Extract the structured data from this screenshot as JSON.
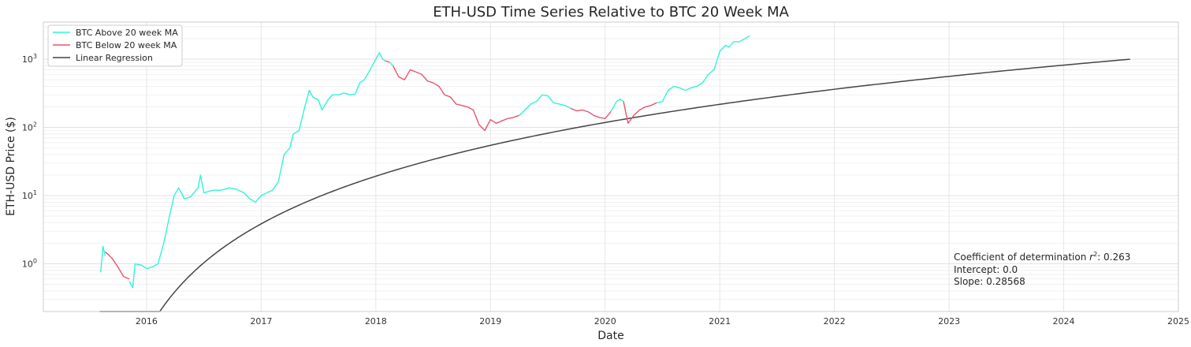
{
  "chart_data": {
    "type": "line",
    "title": "ETH-USD Time Series Relative to BTC 20 Week MA",
    "xlabel": "Date",
    "ylabel": "ETH-USD Price ($)",
    "yscale": "log",
    "xlim": [
      2015.1,
      2025.0
    ],
    "ylim": [
      0.2,
      3500
    ],
    "grid": true,
    "legend_position": "top-left",
    "x_ticks": [
      "2016",
      "2017",
      "2018",
      "2019",
      "2020",
      "2021",
      "2022",
      "2023",
      "2024",
      "2025"
    ],
    "y_ticks": [
      {
        "value": 1,
        "base": "10",
        "exp": "0"
      },
      {
        "value": 10,
        "base": "10",
        "exp": "1"
      },
      {
        "value": 100,
        "base": "10",
        "exp": "2"
      },
      {
        "value": 1000,
        "base": "10",
        "exp": "3"
      }
    ],
    "series": [
      {
        "name": "BTC Above 20 week MA",
        "color": "#2ef5d8",
        "segments": [
          [
            [
              2015.6,
              0.75
            ],
            [
              2015.62,
              1.8
            ],
            [
              2015.64,
              1.3
            ]
          ],
          [
            [
              2015.85,
              0.55
            ],
            [
              2015.88,
              0.45
            ],
            [
              2015.9,
              1.0
            ],
            [
              2015.96,
              0.95
            ],
            [
              2016.0,
              0.85
            ],
            [
              2016.05,
              0.9
            ],
            [
              2016.1,
              1.0
            ],
            [
              2016.15,
              2.0
            ],
            [
              2016.2,
              5.0
            ],
            [
              2016.24,
              10.0
            ],
            [
              2016.28,
              13.0
            ],
            [
              2016.33,
              9.0
            ],
            [
              2016.38,
              9.5
            ],
            [
              2016.45,
              13.0
            ],
            [
              2016.47,
              20.0
            ],
            [
              2016.5,
              11.0
            ],
            [
              2016.58,
              12.0
            ],
            [
              2016.65,
              12.0
            ],
            [
              2016.72,
              13.0
            ],
            [
              2016.78,
              12.5
            ],
            [
              2016.85,
              11.0
            ],
            [
              2016.9,
              9.0
            ],
            [
              2016.95,
              8.0
            ],
            [
              2017.0,
              10.0
            ],
            [
              2017.05,
              11.0
            ],
            [
              2017.1,
              12.0
            ],
            [
              2017.15,
              16.0
            ],
            [
              2017.2,
              40.0
            ],
            [
              2017.25,
              50.0
            ],
            [
              2017.28,
              80.0
            ],
            [
              2017.33,
              90.0
            ],
            [
              2017.38,
              200.0
            ],
            [
              2017.42,
              350.0
            ],
            [
              2017.45,
              280.0
            ],
            [
              2017.5,
              250.0
            ],
            [
              2017.53,
              180.0
            ],
            [
              2017.58,
              250.0
            ],
            [
              2017.62,
              300.0
            ],
            [
              2017.68,
              300.0
            ],
            [
              2017.72,
              320.0
            ],
            [
              2017.78,
              300.0
            ],
            [
              2017.82,
              310.0
            ],
            [
              2017.86,
              450.0
            ],
            [
              2017.9,
              500.0
            ],
            [
              2017.95,
              700.0
            ],
            [
              2018.0,
              1000.0
            ],
            [
              2018.03,
              1250.0
            ],
            [
              2018.06,
              1000.0
            ],
            [
              2018.08,
              950.0
            ]
          ],
          [
            [
              2018.12,
              900.0
            ],
            [
              2018.15,
              800.0
            ]
          ],
          [
            [
              2019.25,
              150.0
            ],
            [
              2019.3,
              180.0
            ],
            [
              2019.35,
              220.0
            ],
            [
              2019.4,
              240.0
            ],
            [
              2019.45,
              300.0
            ],
            [
              2019.5,
              290.0
            ],
            [
              2019.55,
              230.0
            ],
            [
              2019.6,
              220.0
            ],
            [
              2019.65,
              210.0
            ],
            [
              2019.7,
              190.0
            ]
          ],
          [
            [
              2020.05,
              170.0
            ],
            [
              2020.1,
              240.0
            ],
            [
              2020.13,
              260.0
            ],
            [
              2020.16,
              240.0
            ]
          ],
          [
            [
              2020.45,
              230.0
            ],
            [
              2020.5,
              240.0
            ],
            [
              2020.55,
              350.0
            ],
            [
              2020.6,
              400.0
            ],
            [
              2020.65,
              380.0
            ],
            [
              2020.7,
              350.0
            ],
            [
              2020.75,
              380.0
            ],
            [
              2020.8,
              400.0
            ],
            [
              2020.85,
              450.0
            ],
            [
              2020.9,
              600.0
            ],
            [
              2020.95,
              700.0
            ],
            [
              2021.0,
              1300.0
            ],
            [
              2021.05,
              1600.0
            ],
            [
              2021.08,
              1500.0
            ],
            [
              2021.12,
              1800.0
            ],
            [
              2021.17,
              1800.0
            ],
            [
              2021.22,
              2000.0
            ],
            [
              2021.26,
              2200.0
            ]
          ]
        ]
      },
      {
        "name": "BTC Below 20 week MA",
        "color": "#e8556f",
        "segments": [
          [
            [
              2015.64,
              1.5
            ],
            [
              2015.68,
              1.3
            ],
            [
              2015.7,
              1.2
            ],
            [
              2015.75,
              0.9
            ],
            [
              2015.8,
              0.65
            ],
            [
              2015.85,
              0.6
            ]
          ],
          [
            [
              2018.08,
              950.0
            ],
            [
              2018.12,
              900.0
            ]
          ],
          [
            [
              2018.15,
              800.0
            ],
            [
              2018.2,
              550.0
            ],
            [
              2018.25,
              500.0
            ],
            [
              2018.3,
              700.0
            ],
            [
              2018.35,
              650.0
            ],
            [
              2018.4,
              600.0
            ],
            [
              2018.45,
              480.0
            ],
            [
              2018.5,
              450.0
            ],
            [
              2018.55,
              400.0
            ],
            [
              2018.6,
              300.0
            ],
            [
              2018.65,
              280.0
            ],
            [
              2018.7,
              220.0
            ],
            [
              2018.75,
              210.0
            ],
            [
              2018.8,
              200.0
            ],
            [
              2018.85,
              180.0
            ],
            [
              2018.9,
              110.0
            ],
            [
              2018.95,
              90.0
            ],
            [
              2019.0,
              130.0
            ],
            [
              2019.05,
              115.0
            ],
            [
              2019.1,
              125.0
            ],
            [
              2019.15,
              135.0
            ],
            [
              2019.2,
              140.0
            ],
            [
              2019.25,
              150.0
            ]
          ],
          [
            [
              2019.7,
              190.0
            ],
            [
              2019.75,
              175.0
            ],
            [
              2019.8,
              180.0
            ],
            [
              2019.85,
              170.0
            ],
            [
              2019.9,
              150.0
            ],
            [
              2019.95,
              140.0
            ],
            [
              2020.0,
              135.0
            ],
            [
              2020.05,
              170.0
            ]
          ],
          [
            [
              2020.16,
              240.0
            ],
            [
              2020.2,
              115.0
            ],
            [
              2020.25,
              150.0
            ],
            [
              2020.3,
              180.0
            ],
            [
              2020.35,
              200.0
            ],
            [
              2020.4,
              210.0
            ],
            [
              2020.45,
              230.0
            ]
          ]
        ]
      },
      {
        "name": "Linear Regression",
        "color": "#444444",
        "model": "power",
        "x0": 2015.59,
        "end_x": 2024.58,
        "end_y": 1000
      }
    ],
    "annotation": {
      "lines": [
        {
          "prefix": "Coefficient of determination  ",
          "var": "r",
          "sup": "2",
          "suffix": ": 0.263"
        },
        {
          "text": "Intercept: 0.0"
        },
        {
          "text": "Slope: 0.28568"
        }
      ]
    }
  }
}
